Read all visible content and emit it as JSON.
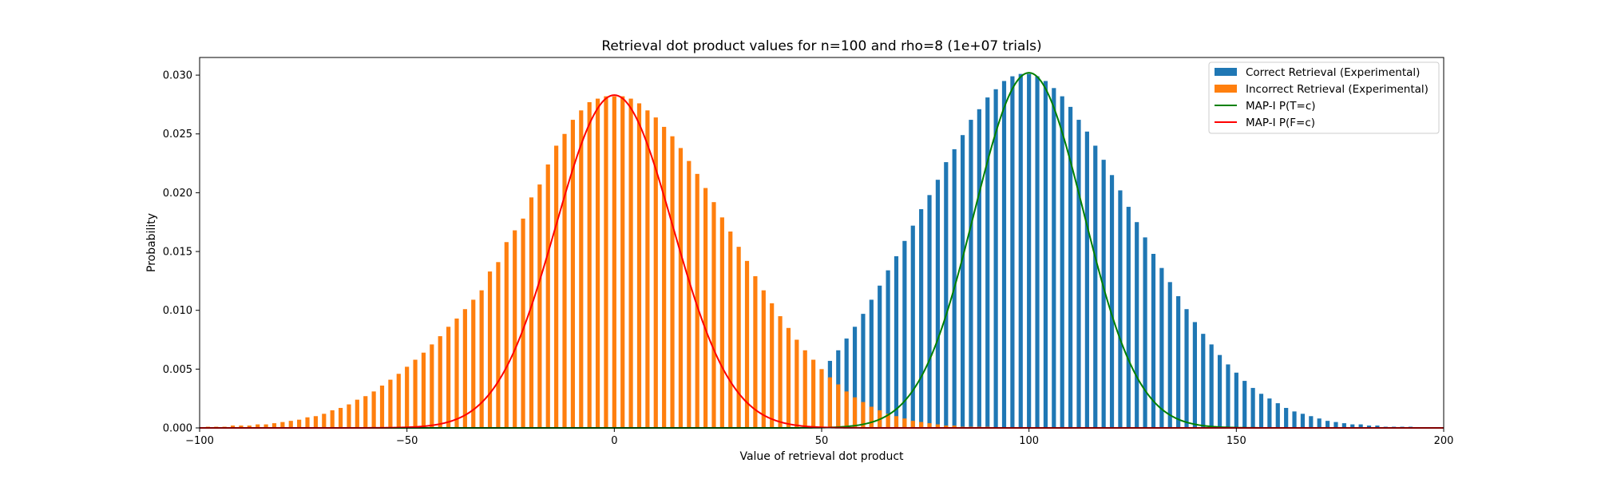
{
  "chart_data": {
    "type": "bar",
    "title": "Retrieval dot product values for n=100 and rho=8 (1e+07 trials)",
    "xlabel": "Value of retrieval dot product",
    "ylabel": "Probability",
    "xlim": [
      -100,
      200
    ],
    "ylim": [
      0,
      0.0315
    ],
    "xticks": [
      -100,
      -50,
      0,
      50,
      100,
      150,
      200
    ],
    "xtick_labels": [
      "−100",
      "−50",
      "0",
      "50",
      "100",
      "150",
      "200"
    ],
    "yticks": [
      0,
      0.005,
      0.01,
      0.015,
      0.02,
      0.025,
      0.03
    ],
    "ytick_labels": [
      "0.000",
      "0.005",
      "0.010",
      "0.015",
      "0.020",
      "0.025",
      "0.030"
    ],
    "grid": false,
    "legend_position": "top-right",
    "bar_width": 1,
    "series": [
      {
        "name": "Correct Retrieval (Experimental)",
        "kind": "histogram",
        "color": "#1f77b4",
        "x": [
          52,
          54,
          56,
          58,
          60,
          62,
          64,
          66,
          68,
          70,
          72,
          74,
          76,
          78,
          80,
          82,
          84,
          86,
          88,
          90,
          92,
          94,
          96,
          98,
          100,
          102,
          104,
          106,
          108,
          110,
          112,
          114,
          116,
          118,
          120,
          122,
          124,
          126,
          128,
          130,
          132,
          134,
          136,
          138,
          140,
          142,
          144,
          146,
          148,
          150,
          152,
          154,
          156,
          158,
          160,
          162,
          164,
          166,
          168,
          170,
          172,
          174,
          176,
          178,
          180,
          182,
          184,
          186,
          188,
          190,
          192,
          194,
          196,
          198
        ],
        "values": [
          0.0057,
          0.0066,
          0.0076,
          0.0086,
          0.0097,
          0.0109,
          0.0121,
          0.0134,
          0.0146,
          0.0159,
          0.0172,
          0.0186,
          0.0198,
          0.0211,
          0.0226,
          0.0237,
          0.0249,
          0.0262,
          0.0271,
          0.0281,
          0.0288,
          0.0295,
          0.0299,
          0.0301,
          0.0301,
          0.0299,
          0.0295,
          0.0289,
          0.0282,
          0.0273,
          0.0262,
          0.0252,
          0.024,
          0.0228,
          0.0215,
          0.0202,
          0.0188,
          0.0175,
          0.0162,
          0.0148,
          0.0136,
          0.0124,
          0.0112,
          0.0101,
          0.009,
          0.008,
          0.0071,
          0.0062,
          0.0054,
          0.0047,
          0.004,
          0.0034,
          0.0029,
          0.0025,
          0.0021,
          0.0017,
          0.0014,
          0.0012,
          0.001,
          0.0008,
          0.0006,
          0.0005,
          0.0004,
          0.0003,
          0.0003,
          0.0002,
          0.0002,
          0.0001,
          0.0001,
          0.0001,
          0.0001,
          0.0,
          0.0,
          0.0
        ]
      },
      {
        "name": "Incorrect Retrieval (Experimental)",
        "kind": "histogram",
        "color": "#ff7f0e",
        "x": [
          -98,
          -96,
          -94,
          -92,
          -90,
          -88,
          -86,
          -84,
          -82,
          -80,
          -78,
          -76,
          -74,
          -72,
          -70,
          -68,
          -66,
          -64,
          -62,
          -60,
          -58,
          -56,
          -54,
          -52,
          -50,
          -48,
          -46,
          -44,
          -42,
          -40,
          -38,
          -36,
          -34,
          -32,
          -30,
          -28,
          -26,
          -24,
          -22,
          -20,
          -18,
          -16,
          -14,
          -12,
          -10,
          -8,
          -6,
          -4,
          -2,
          0,
          2,
          4,
          6,
          8,
          10,
          12,
          14,
          16,
          18,
          20,
          22,
          24,
          26,
          28,
          30,
          32,
          34,
          36,
          38,
          40,
          42,
          44,
          46,
          48,
          50,
          52,
          54,
          56,
          58,
          60,
          62,
          64,
          66,
          68,
          70,
          72,
          74,
          76,
          78,
          80,
          82,
          84,
          86,
          88,
          90,
          92,
          94,
          96,
          98
        ],
        "values": [
          0.0001,
          0.0001,
          0.0001,
          0.0002,
          0.0002,
          0.0002,
          0.0003,
          0.0003,
          0.0004,
          0.0005,
          0.0006,
          0.0007,
          0.0009,
          0.001,
          0.0012,
          0.0015,
          0.0017,
          0.002,
          0.0024,
          0.0027,
          0.0031,
          0.0036,
          0.0041,
          0.0046,
          0.0052,
          0.0058,
          0.0064,
          0.0071,
          0.0078,
          0.0086,
          0.0093,
          0.0101,
          0.0109,
          0.0117,
          0.0133,
          0.0141,
          0.0158,
          0.0168,
          0.0178,
          0.0196,
          0.0207,
          0.0224,
          0.024,
          0.025,
          0.0262,
          0.027,
          0.0277,
          0.028,
          0.0282,
          0.0282,
          0.0282,
          0.028,
          0.0276,
          0.027,
          0.0264,
          0.0256,
          0.0248,
          0.0238,
          0.0227,
          0.0216,
          0.0204,
          0.0192,
          0.0179,
          0.0167,
          0.0154,
          0.0142,
          0.0129,
          0.0117,
          0.0106,
          0.0095,
          0.0085,
          0.0075,
          0.0066,
          0.0058,
          0.005,
          0.0043,
          0.0037,
          0.0031,
          0.0026,
          0.0022,
          0.0018,
          0.0015,
          0.0012,
          0.001,
          0.0008,
          0.0006,
          0.0005,
          0.0004,
          0.0003,
          0.0002,
          0.0002,
          0.0001,
          0.0001,
          0.0001,
          0.0001,
          0.0,
          0.0,
          0.0,
          0.0
        ]
      },
      {
        "name": "MAP-I P(T=c)",
        "kind": "line",
        "color": "#008000",
        "mean": 100,
        "sd": 13.2,
        "peak": 0.0302
      },
      {
        "name": "MAP-I P(F=c)",
        "kind": "line",
        "color": "#ff0000",
        "mean": 0,
        "sd": 14.1,
        "peak": 0.0283
      }
    ]
  }
}
